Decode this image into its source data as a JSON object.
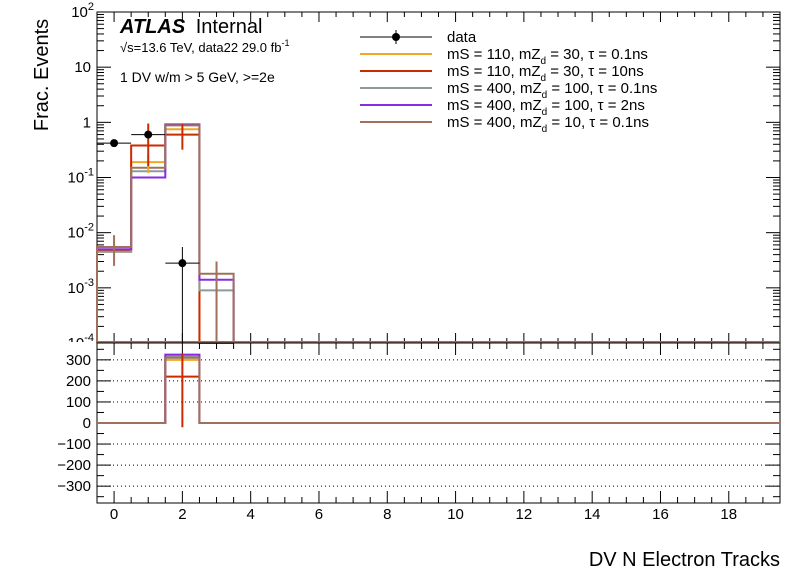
{
  "chart_data": [
    {
      "panel": "top",
      "type": "histogram",
      "yscale": "log",
      "ylabel": "Frac. Events",
      "ylim": [
        0.0001,
        100
      ],
      "xlim": [
        -0.5,
        19.5
      ],
      "experiment": "ATLAS",
      "status": "Internal",
      "energy_text": "√s=13.6 TeV, data22 29.0 fb",
      "lumi_exp": "-1",
      "selection_text": "1 DV w/m > 5 GeV, >=2e",
      "y_ticks": [
        {
          "v": 0.001,
          "base": "10",
          "exp": "-3"
        },
        {
          "v": 0.01,
          "base": "10",
          "exp": "-2"
        },
        {
          "v": 0.1,
          "base": "10",
          "exp": "-1"
        },
        {
          "v": 1,
          "base": "1",
          "exp": ""
        },
        {
          "v": 10,
          "base": "10",
          "exp": ""
        },
        {
          "v": 100,
          "base": "10",
          "exp": "2"
        }
      ],
      "data": {
        "name": "data",
        "points": [
          {
            "x": 0,
            "y": 0.42,
            "ylo": 0.38,
            "yhi": 0.46
          },
          {
            "x": 1,
            "y": 0.6,
            "ylo": 0.55,
            "yhi": 0.65
          },
          {
            "x": 2,
            "y": 0.0028,
            "ylo": 0.0001,
            "yhi": 0.0055
          }
        ]
      },
      "series": [
        {
          "name": "mS = 110, mZ",
          "sub": "d",
          "suffix": " = 30, τ = 0.1ns",
          "color": "#f0a820",
          "values": [
            0.0045,
            0.19,
            0.75,
            0.0001
          ],
          "errors": [
            {
              "x": 1,
              "lo": 0.12,
              "hi": 0.26
            }
          ]
        },
        {
          "name": "mS = 110, mZ",
          "sub": "d",
          "suffix": " = 30, τ = 10ns",
          "color": "#cc2a00",
          "values": [
            0.0048,
            0.38,
            0.6,
            0.0001
          ],
          "errors": [
            {
              "x": 1,
              "lo": 0.16,
              "hi": 0.95
            },
            {
              "x": 2,
              "lo": 0.32,
              "hi": 0.95
            }
          ]
        },
        {
          "name": "mS = 400, mZ",
          "sub": "d",
          "suffix": " = 100, τ = 0.1ns",
          "color": "#8c9a9a",
          "values": [
            0.0045,
            0.13,
            0.9,
            0.0009
          ],
          "errors": []
        },
        {
          "name": "mS = 400, mZ",
          "sub": "d",
          "suffix": " = 100, τ = 2ns",
          "color": "#8a2be2",
          "values": [
            0.005,
            0.1,
            0.92,
            0.0014
          ],
          "errors": []
        },
        {
          "name": "mS = 400, mZ",
          "sub": "d",
          "suffix": " = 10, τ = 0.1ns",
          "color": "#a0705a",
          "values": [
            0.0055,
            0.15,
            0.88,
            0.0018
          ],
          "errors": [
            {
              "x": 0,
              "lo": 0.0025,
              "hi": 0.009
            },
            {
              "x": 3,
              "lo": 0.0001,
              "hi": 0.003
            }
          ]
        }
      ]
    },
    {
      "panel": "bottom",
      "type": "histogram",
      "ylim": [
        -380,
        380
      ],
      "xlim": [
        -0.5,
        19.5
      ],
      "xlabel": "DV N Electron Tracks",
      "y_ticks": [
        -300,
        -200,
        -100,
        0,
        100,
        200,
        300
      ],
      "x_ticks": [
        0,
        2,
        4,
        6,
        8,
        10,
        12,
        14,
        16,
        18
      ],
      "grid_y": [
        -300,
        -200,
        -100,
        100,
        200,
        300
      ],
      "series": [
        {
          "color": "#f0a820",
          "bin": [
            1.5,
            2.5
          ],
          "value": 300
        },
        {
          "color": "#cc2a00",
          "bin": [
            1.5,
            2.5
          ],
          "value": 220
        },
        {
          "color": "#8c9a9a",
          "bin": [
            1.5,
            2.5
          ],
          "value": 315
        },
        {
          "color": "#8a2be2",
          "bin": [
            1.5,
            2.5
          ],
          "value": 325
        },
        {
          "color": "#a0705a",
          "bin": [
            1.5,
            2.5
          ],
          "value": 310
        }
      ],
      "error": {
        "x": 2,
        "y": 220,
        "lo": -20,
        "hi": 330,
        "color": "#cc2a00"
      }
    }
  ]
}
